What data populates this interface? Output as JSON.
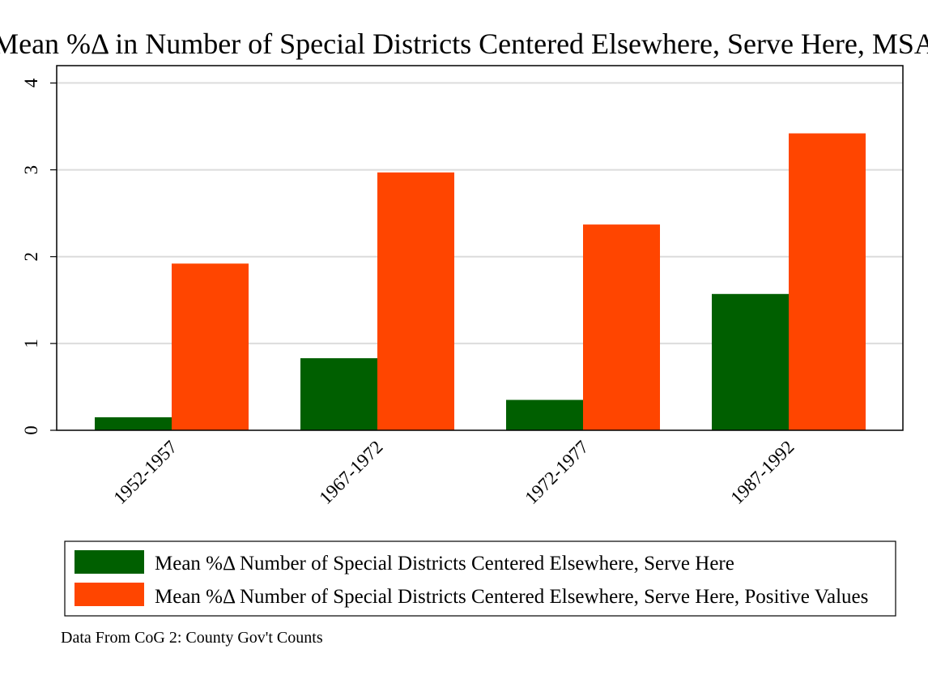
{
  "chart_data": {
    "type": "bar",
    "title": "Mean %Δ in Number of Special Districts Centered Elsewhere, Serve Here, MSA",
    "categories": [
      "1952-1957",
      "1967-1972",
      "1972-1977",
      "1987-1992"
    ],
    "series": [
      {
        "name": "Mean %Δ Number of Special Districts Centered Elsewhere, Serve Here",
        "values": [
          0.15,
          0.83,
          0.35,
          1.57
        ],
        "color": "#005f00"
      },
      {
        "name": "Mean %Δ Number of Special Districts Centered Elsewhere, Serve Here, Positive Values",
        "values": [
          1.92,
          2.97,
          2.37,
          3.42
        ],
        "color": "#ff4500"
      }
    ],
    "ylim": [
      0,
      4.2
    ],
    "yticks": [
      0,
      1,
      2,
      3,
      4
    ],
    "grid": true,
    "legend_position": "bottom",
    "note": "Data From CoG 2: County Gov't Counts"
  }
}
